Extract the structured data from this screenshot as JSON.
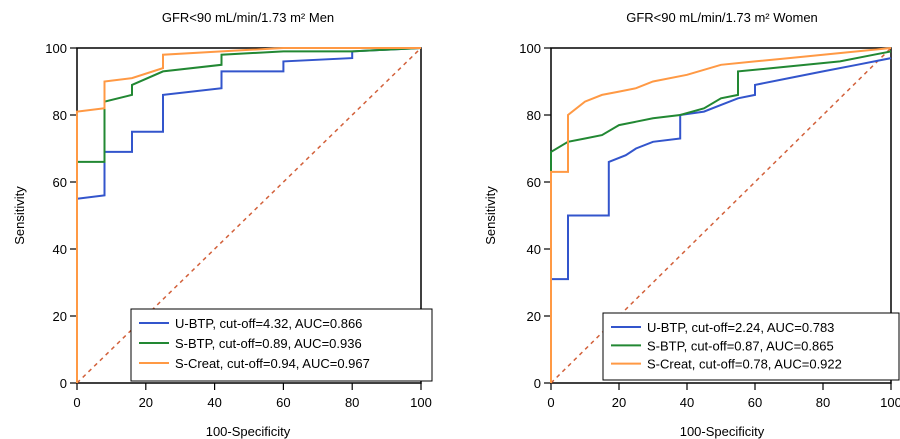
{
  "chart_data": [
    {
      "type": "line",
      "title": "GFR<90 mL/min/1.73 m² Men",
      "xlabel": "100-Specificity",
      "ylabel": "Sensitivity",
      "xlim": [
        0,
        100
      ],
      "ylim": [
        0,
        100
      ],
      "xticks": [
        "0",
        "20",
        "40",
        "60",
        "80",
        "100"
      ],
      "yticks": [
        "0",
        "20",
        "40",
        "60",
        "80",
        "100"
      ],
      "legend_position": "bottom-right",
      "reference_line": true,
      "series": [
        {
          "name": "U-BTP, cut-off=4.32, AUC=0.866",
          "color": "#3355cc",
          "x": [
            0,
            0,
            0,
            8,
            8,
            16,
            16,
            25,
            25,
            42,
            42,
            60,
            60,
            80,
            80,
            100
          ],
          "y": [
            0,
            55,
            55,
            56,
            69,
            69,
            75,
            75,
            86,
            88,
            93,
            93,
            96,
            97,
            99,
            100
          ]
        },
        {
          "name": "S-BTP, cut-off=0.89, AUC=0.936",
          "color": "#228833",
          "x": [
            0,
            0,
            8,
            8,
            16,
            16,
            25,
            25,
            42,
            42,
            60,
            80,
            100
          ],
          "y": [
            0,
            66,
            66,
            84,
            86,
            89,
            93,
            93,
            95,
            98,
            99,
            99,
            100
          ]
        },
        {
          "name": "S-Creat, cut-off=0.94, AUC=0.967",
          "color": "#ff9944",
          "x": [
            0,
            0,
            8,
            8,
            16,
            25,
            25,
            42,
            60,
            100
          ],
          "y": [
            0,
            81,
            82,
            90,
            91,
            94,
            98,
            99,
            100,
            100
          ]
        }
      ]
    },
    {
      "type": "line",
      "title": "GFR<90 mL/min/1.73 m² Women",
      "xlabel": "100-Specificity",
      "ylabel": "Sensitivity",
      "xlim": [
        0,
        100
      ],
      "ylim": [
        0,
        100
      ],
      "xticks": [
        "0",
        "20",
        "40",
        "60",
        "80",
        "100"
      ],
      "yticks": [
        "0",
        "20",
        "40",
        "60",
        "80",
        "100"
      ],
      "legend_position": "bottom-right",
      "reference_line": true,
      "series": [
        {
          "name": "U-BTP, cut-off=2.24, AUC=0.783",
          "color": "#3355cc",
          "x": [
            0,
            0,
            5,
            5,
            17,
            17,
            22,
            25,
            30,
            38,
            38,
            45,
            50,
            55,
            60,
            60,
            70,
            80,
            90,
            100
          ],
          "y": [
            0,
            31,
            31,
            50,
            50,
            66,
            68,
            70,
            72,
            73,
            80,
            81,
            83,
            85,
            86,
            89,
            91,
            93,
            95,
            97
          ]
        },
        {
          "name": "S-BTP, cut-off=0.87, AUC=0.865",
          "color": "#228833",
          "x": [
            0,
            0,
            5,
            10,
            15,
            20,
            25,
            30,
            38,
            45,
            50,
            55,
            55,
            65,
            75,
            85,
            95,
            100
          ],
          "y": [
            0,
            69,
            72,
            73,
            74,
            77,
            78,
            79,
            80,
            82,
            85,
            86,
            93,
            94,
            95,
            96,
            98,
            99
          ]
        },
        {
          "name": "S-Creat, cut-off=0.78, AUC=0.922",
          "color": "#ff9944",
          "x": [
            0,
            0,
            5,
            5,
            10,
            15,
            20,
            25,
            30,
            40,
            50,
            60,
            70,
            80,
            90,
            100
          ],
          "y": [
            0,
            63,
            63,
            80,
            84,
            86,
            87,
            88,
            90,
            92,
            95,
            96,
            97,
            98,
            99,
            100
          ]
        }
      ]
    }
  ]
}
